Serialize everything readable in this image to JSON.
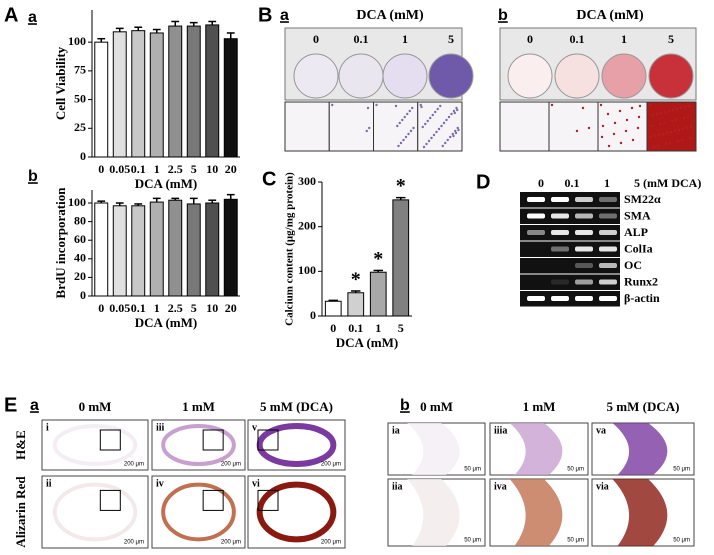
{
  "panel_a_letter": "A",
  "chart_data": [
    {
      "type": "bar",
      "panel": "a",
      "ylabel": "Cell Viability",
      "xlabel": "DCA (mM)",
      "categories": [
        "0",
        "0.05",
        "0.1",
        "1",
        "2.5",
        "5",
        "10",
        "20"
      ],
      "values": [
        100,
        109,
        110,
        108,
        114,
        114,
        115,
        103
      ],
      "errors": [
        3,
        3,
        3,
        3,
        4,
        3,
        3,
        5
      ],
      "colors": [
        "#ffffff",
        "#e0e0e0",
        "#c8c8c8",
        "#b0b0b0",
        "#909090",
        "#787878",
        "#505050",
        "#101010"
      ],
      "ylim": [
        0,
        128
      ],
      "yticks": [
        0,
        25,
        50,
        75,
        100
      ]
    },
    {
      "type": "bar",
      "panel": "b",
      "ylabel": "BrdU incorporation",
      "xlabel": "DCA (mM)",
      "categories": [
        "0",
        "0.05",
        "0.1",
        "1",
        "2.5",
        "5",
        "10",
        "20"
      ],
      "values": [
        100,
        97,
        97,
        101,
        103,
        99,
        100,
        104
      ],
      "errors": [
        2,
        3,
        2,
        4,
        2,
        6,
        3,
        5
      ],
      "colors": [
        "#ffffff",
        "#e0e0e0",
        "#c8c8c8",
        "#b0b0b0",
        "#909090",
        "#787878",
        "#505050",
        "#101010"
      ],
      "ylim": [
        0,
        114
      ],
      "yticks": [
        0,
        20,
        40,
        60,
        80,
        100
      ]
    },
    {
      "type": "bar",
      "panel": "C",
      "ylabel": "Calcium content (μg/mg protein)",
      "xlabel": "DCA (mM)",
      "categories": [
        "0",
        "0.1",
        "1",
        "5"
      ],
      "values": [
        33,
        52,
        98,
        260
      ],
      "errors": [
        2,
        4,
        4,
        5
      ],
      "significance": [
        null,
        "*",
        "*",
        "*"
      ],
      "colors": [
        "#ffffff",
        "#d0d0d0",
        "#a8a8a8",
        "#808080"
      ],
      "ylim": [
        0,
        300
      ],
      "yticks": [
        0,
        100,
        200,
        300
      ]
    }
  ],
  "panel_b": {
    "letter": "B",
    "sub": [
      {
        "letter": "a",
        "title": "DCA (mM)",
        "doses": [
          "0",
          "0.1",
          "1",
          "5"
        ]
      },
      {
        "letter": "b",
        "title": "DCA (mM)",
        "doses": [
          "0",
          "0.1",
          "1",
          "5"
        ]
      }
    ]
  },
  "panel_d": {
    "letter": "D",
    "lanes": [
      "0",
      "0.1",
      "1",
      "5 (mM DCA)"
    ],
    "genes": [
      "SM22α",
      "SMA",
      "ALP",
      "ColIa",
      "OC",
      "Runx2",
      "β-actin"
    ]
  },
  "panel_e": {
    "letter": "E",
    "sub": [
      {
        "letter": "a",
        "columns": [
          "0 mM",
          "1 mM",
          "5 mM (DCA)"
        ],
        "rows": [
          "H&E",
          "Alizarin Red"
        ],
        "images": [
          "i",
          "iii",
          "v",
          "ii",
          "iv",
          "vi"
        ],
        "scale": "200 μm"
      },
      {
        "letter": "b",
        "columns": [
          "0 mM",
          "1 mM",
          "5 mM (DCA)"
        ],
        "images": [
          "ia",
          "iiia",
          "va",
          "iia",
          "iva",
          "via"
        ],
        "scale": "50 μm"
      }
    ]
  }
}
